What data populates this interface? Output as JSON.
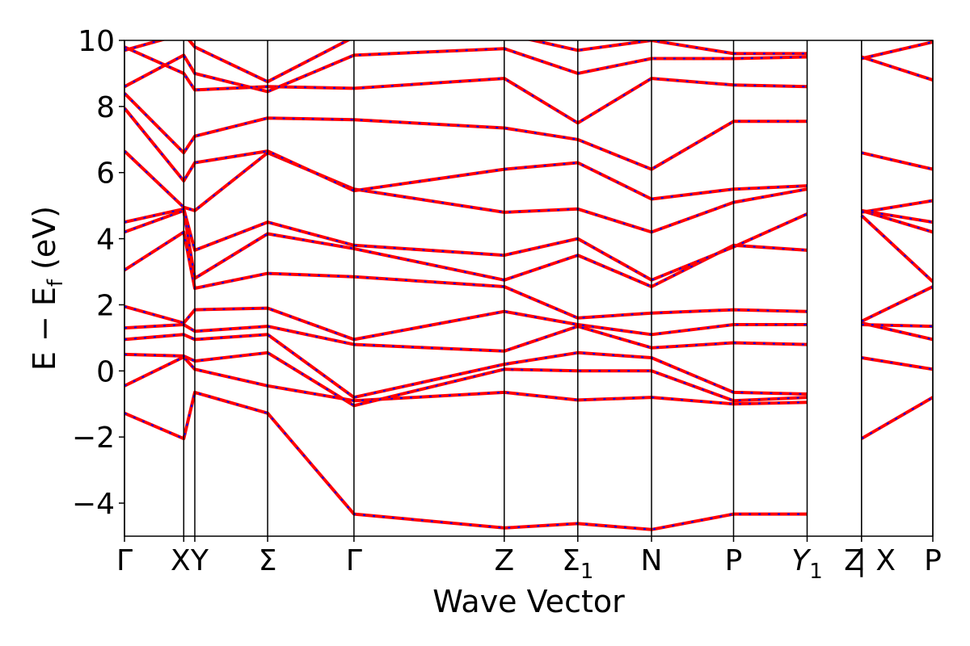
{
  "chart_data": {
    "type": "line",
    "title": "",
    "xlabel": "Wave Vector",
    "ylabel": "E − E_f (eV)",
    "ylabel_main": "E  −  E",
    "ylabel_sub": "f",
    "ylabel_tail": " (eV)",
    "ylim": [
      -5,
      10
    ],
    "yticks": [
      -4,
      -2,
      0,
      2,
      4,
      6,
      8,
      10
    ],
    "ytick_labels": [
      "−4",
      "−2",
      "0",
      "2",
      "4",
      "6",
      "8",
      "10"
    ],
    "xlim": [
      0,
      1
    ],
    "grid": false,
    "legend": "none",
    "high_symmetry_points": [
      {
        "label": "Γ",
        "sub": "",
        "x": 0.0
      },
      {
        "label": "X",
        "sub": "",
        "x": 0.0733
      },
      {
        "label": "Y",
        "sub": "",
        "x": 0.087
      },
      {
        "label": "Σ",
        "sub": "",
        "x": 0.1771
      },
      {
        "label": "Γ",
        "sub": "",
        "x": 0.2839
      },
      {
        "label": "Z",
        "sub": "",
        "x": 0.4698
      },
      {
        "label": "Σ",
        "sub": "1",
        "x": 0.5608
      },
      {
        "label": "N",
        "sub": "",
        "x": 0.652
      },
      {
        "label": "P",
        "sub": "",
        "x": 0.7535
      },
      {
        "label": "Y",
        "sub": "1",
        "x": 0.8445
      },
      {
        "label": "Z",
        "sub": "",
        "x": 0.9118
      },
      {
        "label": "| X",
        "sub": "",
        "x": 0.9118
      },
      {
        "label": "P",
        "sub": "",
        "x": 1.0
      }
    ],
    "series_colors": {
      "band": "#ff0000",
      "overlay": "#0000ff"
    },
    "band_segments": [
      [
        -1.28,
        -2.05,
        -0.65,
        -1.28,
        -4.33,
        -4.75,
        -4.62,
        -4.8,
        -4.33,
        -4.33
      ],
      [
        -0.45,
        0.42,
        0.05,
        -0.45,
        -0.9,
        -0.65,
        -0.88,
        -0.8,
        -1.0,
        -0.95
      ],
      [
        0.5,
        0.45,
        0.3,
        0.55,
        -1.05,
        0.05,
        0.0,
        0.0,
        -0.9,
        -0.8
      ],
      [
        0.95,
        1.1,
        0.95,
        1.1,
        -0.8,
        0.2,
        0.55,
        0.4,
        -0.65,
        -0.7
      ],
      [
        1.3,
        1.4,
        1.2,
        1.35,
        0.8,
        0.6,
        1.35,
        0.7,
        0.85,
        0.8
      ],
      [
        1.95,
        1.45,
        1.85,
        1.9,
        0.95,
        1.8,
        1.4,
        1.1,
        1.4,
        1.4
      ],
      [
        3.05,
        4.2,
        2.5,
        2.95,
        2.85,
        2.55,
        1.6,
        1.75,
        1.85,
        1.8
      ],
      [
        4.2,
        4.85,
        2.8,
        4.15,
        3.7,
        2.75,
        3.5,
        2.55,
        3.8,
        3.65
      ],
      [
        4.5,
        4.9,
        3.65,
        4.5,
        3.8,
        3.5,
        4.0,
        2.75,
        3.75,
        4.75
      ],
      [
        6.65,
        4.95,
        4.85,
        6.6,
        5.5,
        4.8,
        4.9,
        4.2,
        5.1,
        5.5
      ],
      [
        7.95,
        5.75,
        6.3,
        6.65,
        5.45,
        6.1,
        6.3,
        5.2,
        5.5,
        5.6
      ],
      [
        8.4,
        6.6,
        7.1,
        7.65,
        7.6,
        7.35,
        7.0,
        6.1,
        7.55,
        7.55
      ],
      [
        9.8,
        9.0,
        8.5,
        8.6,
        8.55,
        8.85,
        7.5,
        8.85,
        8.65,
        8.6
      ],
      [
        8.6,
        9.55,
        9.0,
        8.45,
        9.55,
        9.75,
        9.0,
        9.45,
        9.45,
        9.5
      ],
      [
        9.7,
        10.2,
        9.8,
        8.75,
        10.1,
        10.2,
        9.7,
        10.0,
        9.6,
        9.6
      ]
    ],
    "last_segment": [
      [
        -2.05,
        -0.8
      ],
      [
        0.4,
        0.05
      ],
      [
        1.45,
        0.95
      ],
      [
        1.4,
        1.35
      ],
      [
        1.5,
        2.55
      ],
      [
        4.7,
        2.7
      ],
      [
        4.85,
        4.2
      ],
      [
        4.85,
        4.5
      ],
      [
        4.8,
        5.15
      ],
      [
        6.6,
        6.1
      ],
      [
        9.5,
        8.8
      ],
      [
        9.45,
        9.95
      ]
    ]
  }
}
